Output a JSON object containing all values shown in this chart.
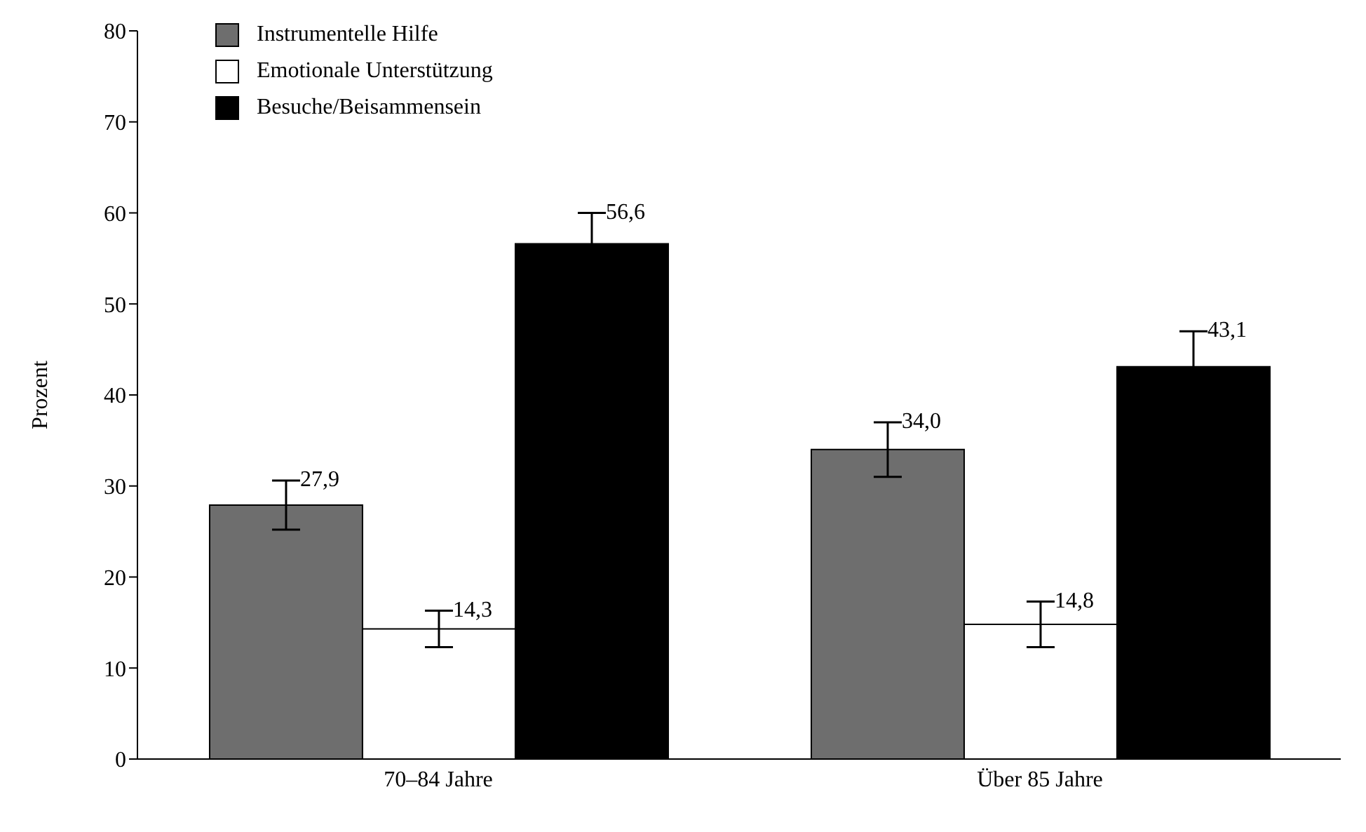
{
  "chart_data": {
    "type": "bar",
    "ylabel": "Prozent",
    "categories": [
      "70–84 Jahre",
      "Über 85 Jahre"
    ],
    "series": [
      {
        "name": "Instrumentelle Hilfe",
        "color": "#6e6e6e",
        "values": [
          27.9,
          34.0
        ],
        "errors": [
          2.7,
          3.0
        ],
        "value_labels": [
          "27,9",
          "34,0"
        ]
      },
      {
        "name": "Emotionale Unterstützung",
        "color": "#ffffff",
        "values": [
          14.3,
          14.8
        ],
        "errors": [
          2.0,
          2.5
        ],
        "value_labels": [
          "14,3",
          "14,8"
        ]
      },
      {
        "name": "Besuche/Beisammensein",
        "color": "#000000",
        "values": [
          56.6,
          43.1
        ],
        "errors": [
          3.4,
          3.9
        ],
        "value_labels": [
          "56,6",
          "43,1"
        ]
      }
    ],
    "ylim": [
      0,
      80
    ],
    "yticks": [
      0,
      10,
      20,
      30,
      40,
      50,
      60,
      70,
      80
    ],
    "grid": false,
    "legend": "top left"
  }
}
